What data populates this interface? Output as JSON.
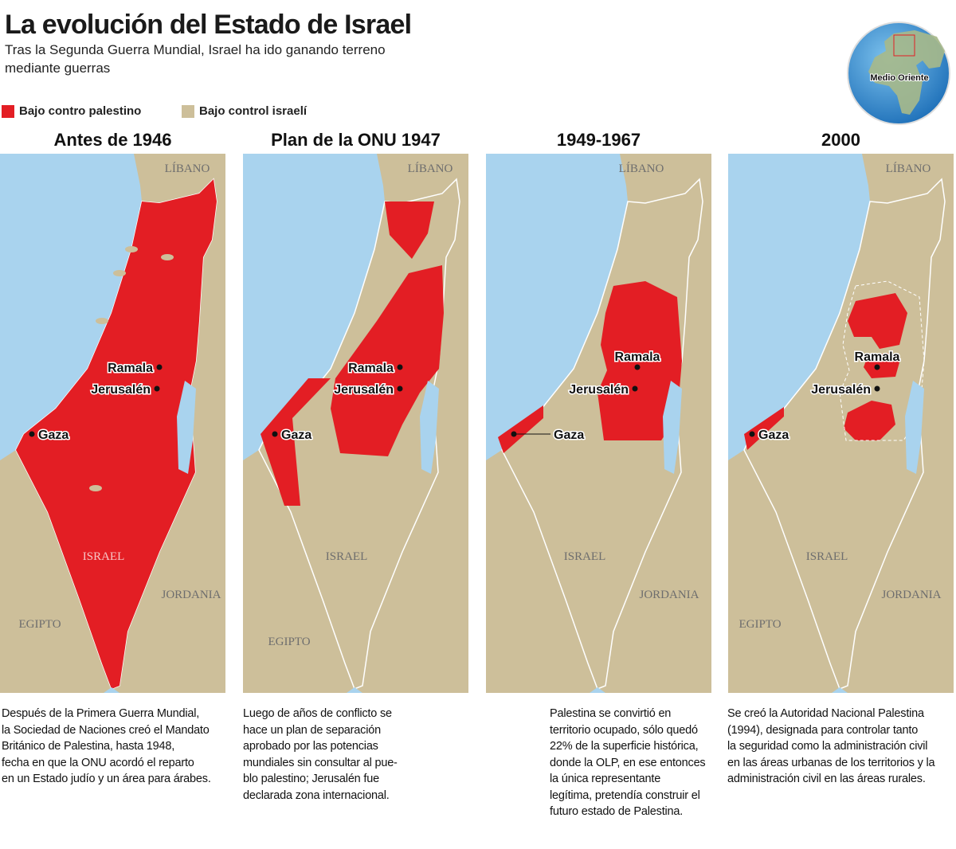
{
  "header": {
    "title": "La evolución del Estado de Israel",
    "subtitle": [
      "Tras la Segunda Guerra Mundial, Israel ha ido ganando terreno",
      "mediante guerras"
    ]
  },
  "legend": [
    {
      "label": "Bajo contro palestino",
      "color": "#e31e24"
    },
    {
      "label": "Bajo control israelí",
      "color": "#cdbf9a"
    }
  ],
  "globe": {
    "label": "Medio Oriente"
  },
  "panels": [
    {
      "title": "Antes de 1946",
      "labels": {
        "lebanon": "LÍBANO",
        "ramala": "Ramala",
        "jerusalem": "Jerusalén",
        "gaza": "Gaza",
        "israel": "ISRAEL",
        "jordan": "JORDANIA",
        "egypt": "EGIPTO"
      },
      "description": [
        "Después de la Primera Guerra Mundial,",
        "la Sociedad de Naciones creó el Mandato",
        "Británico de Palestina, hasta 1948,",
        "fecha en que la ONU acordó el reparto",
        "en un Estado judío y un área para árabes."
      ]
    },
    {
      "title": "Plan de la ONU 1947",
      "labels": {
        "lebanon": "LÍBANO",
        "ramala": "Ramala",
        "jerusalem": "Jerusalén",
        "gaza": "Gaza",
        "israel": "ISRAEL",
        "egypt": "EGIPTO"
      },
      "description": [
        "Luego de años de conflicto se",
        "hace un plan de separación",
        "aprobado por las potencias",
        "mundiales sin consultar al pue-",
        "blo palestino; Jerusalén fue",
        "declarada zona internacional."
      ]
    },
    {
      "title": "1949-1967",
      "labels": {
        "lebanon": "LÍBANO",
        "ramala": "Ramala",
        "jerusalem": "Jerusalén",
        "gaza": "Gaza",
        "israel": "ISRAEL",
        "jordan": "JORDANIA"
      },
      "description": [
        "Palestina se convirtió en",
        "territorio ocupado, sólo quedó",
        "22% de la superficie histórica,",
        "donde la OLP, en ese entonces",
        "la única representante",
        "legítima, pretendía construir el",
        "futuro estado de Palestina."
      ]
    },
    {
      "title": "2000",
      "labels": {
        "lebanon": "LÍBANO",
        "ramala": "Ramala",
        "jerusalem": "Jerusalén",
        "gaza": "Gaza",
        "israel": "ISRAEL",
        "jordan": "JORDANIA",
        "egypt": "EGIPTO"
      },
      "description": [
        "Se creó la Autoridad Nacional Palestina",
        "(1994), designada para controlar tanto",
        "la seguridad como la administración civil",
        "en las áreas urbanas de los territorios y la",
        "administración civil en las áreas rurales."
      ]
    }
  ]
}
